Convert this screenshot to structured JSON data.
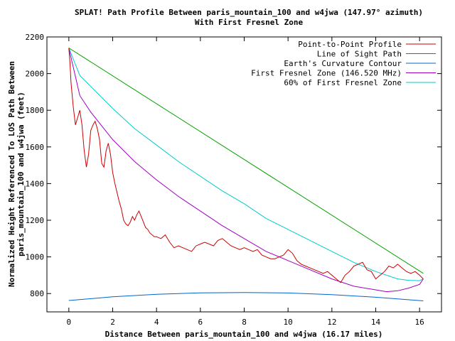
{
  "chart_data": {
    "type": "line",
    "title": "SPLAT! Path Profile Between paris_mountain_100 and w4jwa (147.97° azimuth)",
    "subtitle": "With First Fresnel Zone",
    "xlabel": "Distance Between paris_mountain_100 and w4jwa (16.17 miles)",
    "ylabel_line1": "Normalized Height Referenced To LOS Path Between",
    "ylabel_line2": "paris_mountain_100 and w4jwa (feet)",
    "xlim": [
      -1,
      17
    ],
    "ylim": [
      700,
      2200
    ],
    "x_ticks": [
      0,
      2,
      4,
      6,
      8,
      10,
      12,
      14,
      16
    ],
    "y_ticks": [
      800,
      1000,
      1200,
      1400,
      1600,
      1800,
      2000,
      2200
    ],
    "legend_position": "top-right",
    "series": [
      {
        "name": "Point-to-Point Profile",
        "color": "#cc0000",
        "x": [
          0,
          0.05,
          0.1,
          0.2,
          0.3,
          0.4,
          0.5,
          0.6,
          0.7,
          0.8,
          0.9,
          1.0,
          1.1,
          1.2,
          1.3,
          1.4,
          1.5,
          1.6,
          1.7,
          1.8,
          1.9,
          2.0,
          2.1,
          2.2,
          2.3,
          2.4,
          2.5,
          2.6,
          2.7,
          2.8,
          2.9,
          3.0,
          3.1,
          3.2,
          3.3,
          3.4,
          3.5,
          3.6,
          3.7,
          3.8,
          3.9,
          4.0,
          4.2,
          4.4,
          4.6,
          4.8,
          5.0,
          5.2,
          5.4,
          5.6,
          5.8,
          6.0,
          6.2,
          6.4,
          6.6,
          6.8,
          7.0,
          7.2,
          7.4,
          7.6,
          7.8,
          8.0,
          8.2,
          8.4,
          8.6,
          8.8,
          9.0,
          9.2,
          9.4,
          9.6,
          9.8,
          10.0,
          10.2,
          10.4,
          10.6,
          10.8,
          11.0,
          11.2,
          11.4,
          11.6,
          11.8,
          12.0,
          12.2,
          12.4,
          12.6,
          12.8,
          13.0,
          13.2,
          13.4,
          13.6,
          13.8,
          14.0,
          14.2,
          14.4,
          14.6,
          14.8,
          15.0,
          15.2,
          15.4,
          15.6,
          15.8,
          16.0,
          16.17
        ],
        "y": [
          2140,
          2060,
          1950,
          1820,
          1720,
          1760,
          1800,
          1720,
          1580,
          1490,
          1560,
          1690,
          1720,
          1740,
          1700,
          1640,
          1510,
          1490,
          1580,
          1620,
          1560,
          1460,
          1400,
          1350,
          1300,
          1260,
          1200,
          1180,
          1170,
          1190,
          1220,
          1200,
          1230,
          1250,
          1220,
          1190,
          1160,
          1150,
          1130,
          1120,
          1110,
          1110,
          1100,
          1120,
          1080,
          1050,
          1060,
          1050,
          1040,
          1030,
          1060,
          1070,
          1080,
          1070,
          1060,
          1090,
          1100,
          1080,
          1060,
          1050,
          1040,
          1050,
          1040,
          1030,
          1040,
          1010,
          1000,
          990,
          990,
          1000,
          1010,
          1040,
          1020,
          980,
          960,
          950,
          940,
          930,
          920,
          910,
          920,
          900,
          880,
          860,
          900,
          920,
          950,
          960,
          970,
          930,
          920,
          880,
          900,
          920,
          950,
          940,
          960,
          940,
          920,
          910,
          920,
          900,
          880
        ]
      },
      {
        "name": "Line of Sight Path",
        "color": "#00a000",
        "x": [
          0,
          16.17
        ],
        "y": [
          2140,
          910
        ]
      },
      {
        "name": "Earth's Curvature Contour",
        "color": "#0066cc",
        "x": [
          0,
          2,
          4,
          6,
          8,
          10,
          12,
          14,
          16.17
        ],
        "y": [
          762,
          782,
          796,
          804,
          806,
          803,
          794,
          780,
          760
        ]
      },
      {
        "name": "First Fresnel Zone (146.520 MHz)",
        "color": "#a000c0",
        "x": [
          0,
          0.5,
          1,
          2,
          3,
          4,
          5,
          6,
          7,
          8,
          9,
          10,
          11,
          12,
          13,
          14,
          14.5,
          15,
          15.5,
          16,
          16.17
        ],
        "y": [
          2140,
          1880,
          1790,
          1640,
          1520,
          1420,
          1330,
          1250,
          1170,
          1100,
          1030,
          980,
          930,
          880,
          840,
          820,
          810,
          815,
          830,
          850,
          880
        ]
      },
      {
        "name": "60% of First Fresnel Zone",
        "color": "#00cccc",
        "x": [
          0,
          0.5,
          1,
          2,
          3,
          4,
          5,
          6,
          7,
          8,
          9,
          10,
          11,
          12,
          13,
          14,
          15,
          15.5,
          16,
          16.17
        ],
        "y": [
          2140,
          1990,
          1930,
          1810,
          1700,
          1610,
          1520,
          1440,
          1360,
          1290,
          1210,
          1150,
          1090,
          1030,
          970,
          920,
          880,
          872,
          870,
          880
        ]
      }
    ]
  }
}
